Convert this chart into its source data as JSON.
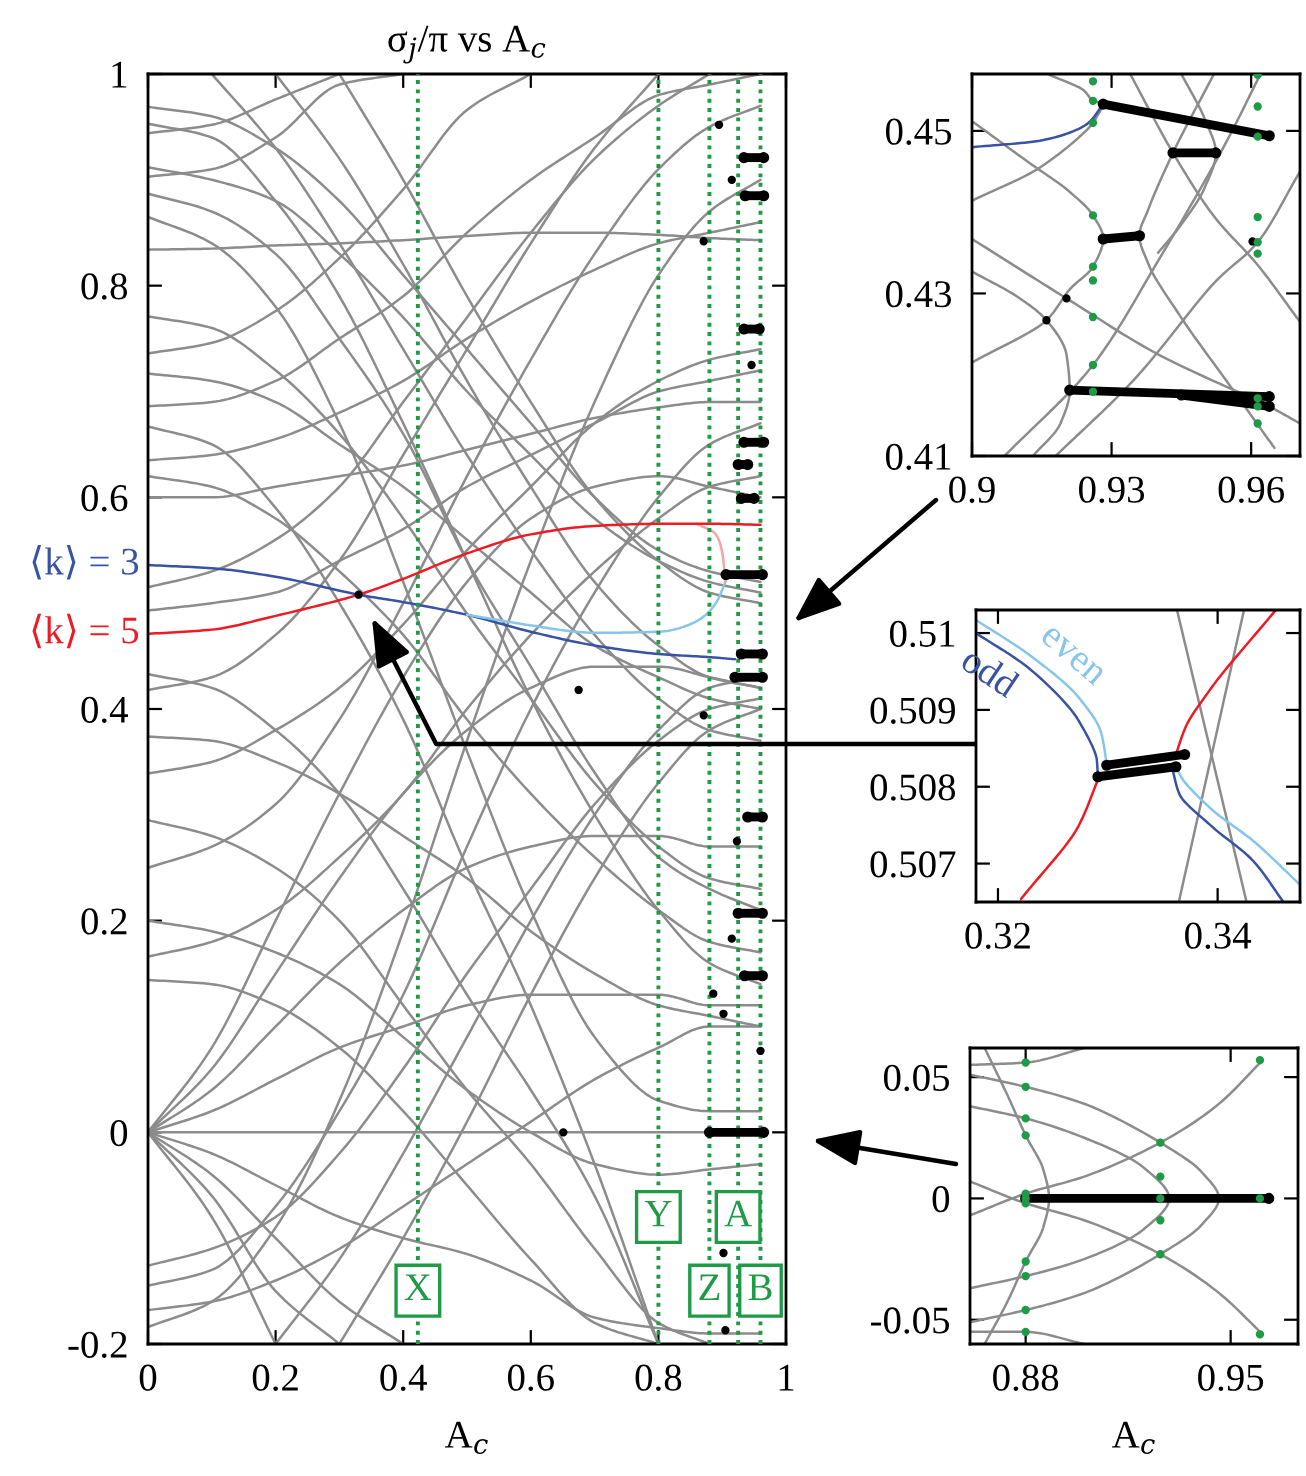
{
  "chart_data": [
    {
      "type": "line",
      "title": "σ$_{j}$/π vs A$_{c}$",
      "xlabel": "A$_{c}$",
      "xlim": [
        0,
        1
      ],
      "ylim": [
        -0.2,
        1
      ],
      "xticks": [
        0,
        0.2,
        0.4,
        0.6,
        0.8,
        1
      ],
      "yticks": [
        -0.2,
        0,
        0.2,
        0.4,
        0.6,
        0.8,
        1
      ],
      "x": [
        0,
        0.1,
        0.2,
        0.3,
        0.4,
        0.5,
        0.6,
        0.7,
        0.8,
        0.88,
        0.96
      ],
      "series": [
        {
          "color": "#8c8c8c",
          "values": [
            0.969,
            0.96,
            0.93,
            0.88,
            0.81,
            0.74,
            0.67,
            0.6,
            0.55,
            0.53,
            0.52
          ]
        },
        {
          "color": "#8c8c8c",
          "values": [
            0.953,
            0.94,
            0.88,
            0.79,
            0.67,
            0.54,
            0.41,
            0.3,
            0.21,
            0.16,
            0.14
          ]
        },
        {
          "color": "#8c8c8c",
          "values": [
            0.912,
            0.9,
            0.88,
            0.83,
            0.77,
            0.7,
            0.64,
            0.58,
            0.54,
            0.52,
            0.51
          ]
        },
        {
          "color": "#8c8c8c",
          "values": [
            0.887,
            0.87,
            0.83,
            0.75,
            0.66,
            0.54,
            0.44,
            0.34,
            0.26,
            0.23,
            0.21
          ]
        },
        {
          "color": "#8c8c8c",
          "values": [
            0.865,
            0.84,
            0.78,
            0.67,
            0.52,
            0.36,
            0.21,
            0.09,
            0.03,
            0.02,
            0.02
          ]
        },
        {
          "color": "#8c8c8c",
          "values": [
            0.771,
            0.76,
            0.72,
            0.66,
            0.58,
            0.49,
            0.41,
            0.33,
            0.27,
            0.24,
            0.23
          ]
        },
        {
          "color": "#8c8c8c",
          "values": [
            0.717,
            0.71,
            0.69,
            0.65,
            0.61,
            0.56,
            0.51,
            0.46,
            0.43,
            0.41,
            0.4
          ]
        },
        {
          "color": "#8c8c8c",
          "values": [
            0.667,
            0.65,
            0.59,
            0.5,
            0.39,
            0.25,
            0.12,
            -0.03,
            -0.2,
            null,
            null
          ]
        },
        {
          "color": "#8c8c8c",
          "values": [
            0.62,
            0.61,
            0.58,
            0.53,
            0.47,
            0.39,
            0.32,
            0.26,
            0.21,
            0.18,
            0.17
          ]
        },
        {
          "color": "#8c8c8c",
          "values": [
            0.433,
            0.42,
            0.38,
            0.32,
            0.23,
            0.13,
            0.04,
            -0.06,
            -0.2,
            null,
            null
          ]
        },
        {
          "color": "#8c8c8c",
          "values": [
            0.374,
            0.37,
            0.35,
            0.32,
            0.28,
            0.24,
            0.19,
            0.15,
            0.12,
            0.11,
            0.1
          ]
        },
        {
          "color": "#8c8c8c",
          "values": [
            0.295,
            0.28,
            0.25,
            0.2,
            0.12,
            0.04,
            -0.03,
            -0.11,
            -0.18,
            -0.2,
            null
          ]
        },
        {
          "color": "#8c8c8c",
          "values": [
            0.2,
            0.19,
            0.17,
            0.14,
            0.09,
            0.04,
            0,
            -0.03,
            -0.04,
            -0.035,
            -0.03
          ]
        },
        {
          "color": "#8c8c8c",
          "values": [
            0.144,
            0.14,
            0.12,
            0.08,
            0.02,
            -0.05,
            -0.12,
            -0.18,
            -0.2,
            null,
            null
          ]
        },
        {
          "color": "#8c8c8c",
          "values": [
            0.944,
            0.952,
            0.976,
            1,
            null,
            null,
            null,
            null,
            null,
            null,
            null
          ]
        },
        {
          "color": "#8c8c8c",
          "values": [
            0.903,
            0.91,
            0.94,
            0.99,
            1,
            null,
            null,
            null,
            null,
            null,
            null
          ]
        },
        {
          "color": "#8c8c8c",
          "values": [
            0.834,
            0.835,
            0.838,
            0.84,
            0.843,
            0.847,
            0.85,
            0.85,
            0.848,
            0.845,
            0.843
          ]
        },
        {
          "color": "#8c8c8c",
          "values": [
            0.736,
            0.746,
            0.776,
            0.826,
            0.891,
            0.966,
            1,
            null,
            null,
            null,
            null
          ]
        },
        {
          "color": "#8c8c8c",
          "values": [
            0.686,
            0.69,
            0.71,
            0.75,
            0.79,
            0.85,
            0.9,
            0.94,
            0.98,
            0.99,
            1
          ]
        },
        {
          "color": "#8c8c8c",
          "values": [
            0.635,
            0.64,
            0.655,
            0.68,
            0.71,
            0.75,
            0.785,
            0.815,
            0.84,
            0.85,
            0.86
          ]
        },
        {
          "color": "#8c8c8c",
          "values": [
            0.6,
            0.6,
            0.61,
            0.62,
            0.63,
            0.645,
            0.66,
            0.675,
            0.685,
            0.69,
            0.69
          ]
        },
        {
          "color": "#8c8c8c",
          "values": [
            0.515,
            0.53,
            0.56,
            0.61,
            0.69,
            0.77,
            0.85,
            0.92,
            0.97,
            1,
            null
          ]
        },
        {
          "color": "#8c8c8c",
          "values": [
            0.493,
            0.5,
            0.51,
            0.54,
            0.57,
            0.61,
            0.64,
            0.67,
            0.7,
            0.71,
            0.72
          ]
        },
        {
          "color": "#8c8c8c",
          "values": [
            0.418,
            0.43,
            0.47,
            0.54,
            0.64,
            0.74,
            0.84,
            0.93,
            1,
            null,
            null
          ]
        },
        {
          "color": "#8c8c8c",
          "values": [
            0.339,
            0.35,
            0.38,
            0.42,
            0.48,
            0.55,
            0.61,
            0.67,
            0.71,
            0.73,
            0.74
          ]
        },
        {
          "color": "#8c8c8c",
          "values": [
            0.25,
            0.27,
            0.31,
            0.39,
            0.5,
            0.62,
            0.73,
            0.83,
            0.91,
            0.95,
            0.97
          ]
        },
        {
          "color": "#8c8c8c",
          "values": [
            0.166,
            0.18,
            0.21,
            0.26,
            0.32,
            0.4,
            0.47,
            0.53,
            0.58,
            0.61,
            0.62
          ]
        },
        {
          "color": "#8c8c8c",
          "values": [
            -0.126,
            -0.11,
            -0.08,
            -0.02,
            0.06,
            0.15,
            0.23,
            0.31,
            0.37,
            0.4,
            0.41
          ]
        },
        {
          "color": "#8c8c8c",
          "values": [
            -0.145,
            -0.13,
            -0.07,
            0.02,
            0.13,
            0.27,
            0.4,
            0.51,
            0.6,
            0.65,
            0.67
          ]
        },
        {
          "color": "#8c8c8c",
          "values": [
            -0.168,
            -0.16,
            -0.14,
            -0.11,
            -0.07,
            -0.03,
            0.01,
            0.05,
            0.08,
            0.1,
            0.1
          ]
        },
        {
          "color": "#8c8c8c",
          "values": [
            -0.184,
            -0.16,
            -0.09,
            0.03,
            0.19,
            0.37,
            0.54,
            0.69,
            0.81,
            0.87,
            0.9
          ]
        },
        {
          "color": "#8c8c8c",
          "values": [
            null,
            null,
            -0.2,
            -0.12,
            -0.02,
            0.09,
            0.2,
            0.3,
            0.38,
            0.42,
            0.43
          ]
        },
        {
          "color": "#8c8c8c",
          "values": [
            null,
            null,
            null,
            -0.2,
            -0.1,
            0.01,
            0.13,
            0.24,
            0.33,
            0.38,
            0.4
          ]
        },
        {
          "color": "#8c8c8c",
          "values": [
            null,
            1,
            0.93,
            0.84,
            0.74,
            0.64,
            0.55,
            0.47,
            0.41,
            0.38,
            0.37
          ]
        },
        {
          "color": "#8c8c8c",
          "values": [
            null,
            null,
            1,
            0.92,
            0.82,
            0.71,
            0.61,
            0.52,
            0.46,
            0.43,
            0.42
          ]
        },
        {
          "color": "#8c8c8c",
          "values": [
            null,
            null,
            null,
            1,
            0.9,
            0.79,
            0.69,
            0.6,
            0.54,
            0.51,
            0.5
          ]
        },
        {
          "color": "#8c8c8c",
          "values": [
            0,
            0.02,
            0.05,
            0.08,
            0.1,
            0.12,
            0.13,
            0.13,
            0.13,
            0.12,
            0.12
          ]
        },
        {
          "color": "#8c8c8c",
          "values": [
            0,
            0.04,
            0.1,
            0.16,
            0.21,
            0.25,
            0.27,
            0.28,
            0.28,
            0.27,
            0.27
          ]
        },
        {
          "color": "#8c8c8c",
          "values": [
            0,
            0.06,
            0.15,
            0.24,
            0.32,
            0.38,
            0.42,
            0.44,
            0.44,
            0.43,
            0.42
          ]
        },
        {
          "color": "#8c8c8c",
          "values": [
            0,
            0.08,
            0.2,
            0.32,
            0.43,
            0.52,
            0.58,
            0.61,
            0.62,
            0.61,
            0.6
          ]
        },
        {
          "color": "#8c8c8c",
          "values": [
            0,
            -0.02,
            -0.05,
            -0.08,
            -0.1,
            -0.115,
            -0.14,
            -0.175,
            -0.185,
            -0.19,
            -0.19
          ]
        },
        {
          "color": "#8c8c8c",
          "values": [
            0,
            -0.04,
            -0.1,
            -0.16,
            -0.2,
            null,
            null,
            null,
            null,
            null,
            null
          ]
        },
        {
          "color": "#8c8c8c",
          "values": [
            0,
            -0.06,
            -0.15,
            -0.2,
            null,
            null,
            null,
            null,
            null,
            null,
            null
          ]
        },
        {
          "color": "#8c8c8c",
          "values": [
            0,
            -0.08,
            -0.2,
            null,
            null,
            null,
            null,
            null,
            null,
            null,
            null
          ]
        },
        {
          "color": "#8c8c8c",
          "values": [
            0,
            0,
            0,
            0,
            0,
            0,
            0,
            0,
            0,
            0,
            0
          ]
        },
        {
          "name": "⟨k⟩ = 3",
          "color": "#3953a4",
          "x": [
            0,
            0.1,
            0.2,
            0.33,
            0.4,
            0.5,
            0.6,
            0.7,
            0.8,
            0.88,
            0.92
          ],
          "values": [
            0.536,
            0.533,
            0.525,
            0.508,
            0.501,
            0.489,
            0.473,
            0.46,
            0.452,
            0.449,
            0.447
          ]
        },
        {
          "color": "#87c5ea",
          "x": [
            0.5,
            0.55,
            0.6,
            0.7,
            0.8,
            0.86,
            0.89,
            0.905
          ],
          "values": [
            0.489,
            0.484,
            0.479,
            0.472,
            0.473,
            0.483,
            0.5,
            0.52
          ]
        },
        {
          "color": "#f4a6a6",
          "x": [
            0.86,
            0.89,
            0.9,
            0.905
          ],
          "values": [
            0.575,
            0.565,
            0.548,
            0.52
          ]
        },
        {
          "name": "⟨k⟩ = 5",
          "color": "#ed1c24",
          "x": [
            0,
            0.1,
            0.2,
            0.33,
            0.4,
            0.5,
            0.6,
            0.7,
            0.8,
            0.88,
            0.96
          ],
          "values": [
            0.471,
            0.475,
            0.488,
            0.508,
            0.523,
            0.547,
            0.565,
            0.573,
            0.575,
            0.575,
            0.574
          ]
        },
        {
          "type": "line",
          "marker": "circle",
          "color": "#000000",
          "x": [
            0.934,
            0.965
          ],
          "values": [
            0.921,
            0.921
          ]
        },
        {
          "type": "line",
          "marker": "circle",
          "color": "#000000",
          "x": [
            0.936,
            0.965
          ],
          "values": [
            0.885,
            0.885
          ]
        },
        {
          "type": "line",
          "marker": "circle",
          "color": "#000000",
          "x": [
            0.934,
            0.958
          ],
          "values": [
            0.759,
            0.759
          ]
        },
        {
          "type": "line",
          "marker": "circle",
          "color": "#000000",
          "x": [
            0.934,
            0.965
          ],
          "values": [
            0.652,
            0.652
          ]
        },
        {
          "type": "line",
          "marker": "circle",
          "color": "#000000",
          "x": [
            0.925,
            0.94
          ],
          "values": [
            0.631,
            0.631
          ]
        },
        {
          "type": "line",
          "marker": "circle",
          "color": "#000000",
          "x": [
            0.93,
            0.95
          ],
          "values": [
            0.599,
            0.599
          ]
        },
        {
          "type": "line",
          "marker": "circle",
          "color": "#000000",
          "x": [
            0.906,
            0.963
          ],
          "values": [
            0.527,
            0.527
          ]
        },
        {
          "type": "line",
          "marker": "circle",
          "color": "#000000",
          "x": [
            0.93,
            0.963
          ],
          "values": [
            0.452,
            0.452
          ]
        },
        {
          "type": "line",
          "marker": "circle",
          "color": "#000000",
          "x": [
            0.92,
            0.963
          ],
          "values": [
            0.43,
            0.43
          ]
        },
        {
          "type": "line",
          "marker": "circle",
          "color": "#000000",
          "x": [
            0.94,
            0.963
          ],
          "values": [
            0.298,
            0.298
          ]
        },
        {
          "type": "line",
          "marker": "circle",
          "color": "#000000",
          "x": [
            0.925,
            0.963
          ],
          "values": [
            0.207,
            0.207
          ]
        },
        {
          "type": "line",
          "marker": "circle",
          "color": "#000000",
          "x": [
            0.935,
            0.963
          ],
          "values": [
            0.148,
            0.148
          ]
        },
        {
          "type": "line",
          "marker": "circle",
          "color": "#000000",
          "x": [
            0.88,
            0.965
          ],
          "values": [
            0,
            0
          ]
        },
        {
          "type": "scatter",
          "marker": "circle",
          "color": "#000000",
          "x": [
            0.33,
            0.895,
            0.915,
            0.871,
            0.946,
            0.675,
            0.871,
            0.923,
            0.651,
            0.886,
            0.902,
            0.96,
            0.902,
            0.915,
            0.905
          ],
          "values": [
            0.508,
            0.952,
            0.9,
            0.842,
            0.725,
            0.418,
            0.394,
            0.275,
            0,
            0.131,
            0.112,
            0.077,
            -0.114,
            0.183,
            -0.187
          ]
        }
      ],
      "ref_lines": [
        {
          "axis": "x",
          "value": 0.423,
          "label": "X",
          "color": "#1f9a46",
          "line_style": "dotted"
        },
        {
          "axis": "x",
          "value": 0.8,
          "label": "Y",
          "color": "#1f9a46",
          "line_style": "dotted"
        },
        {
          "axis": "x",
          "value": 0.88,
          "label": "Z",
          "color": "#1f9a46",
          "line_style": "dotted"
        },
        {
          "axis": "x",
          "value": 0.925,
          "label": "A",
          "color": "#1f9a46",
          "line_style": "dotted"
        },
        {
          "axis": "x",
          "value": 0.96,
          "label": "B",
          "color": "#1f9a46",
          "line_style": "dotted"
        }
      ]
    },
    {
      "type": "line",
      "xlim": [
        0.9,
        0.9705
      ],
      "ylim": [
        0.41,
        0.457
      ],
      "xticks": [
        0.9,
        0.93,
        0.96
      ],
      "yticks": [
        0.41,
        0.43,
        0.45
      ],
      "series": [
        {
          "color": "#8c8c8c",
          "x": [
            0.9167,
            0.924,
            0.926,
            0.9282,
            0.926,
            0.9146,
            0.9
          ],
          "values": [
            0.4569,
            0.455,
            0.4537,
            0.4533,
            0.451,
            0.4455,
            0.4414
          ]
        },
        {
          "color": "#8c8c8c",
          "x": [
            0.9,
            0.912,
            0.921,
            0.926,
            0.9282,
            0.926,
            0.921,
            0.916,
            0.9
          ],
          "values": [
            0.4512,
            0.4462,
            0.4425,
            0.4396,
            0.4367,
            0.4333,
            0.4305,
            0.4267,
            0.4215
          ]
        },
        {
          "color": "#8c8c8c",
          "x": [
            0.952,
            0.9432,
            0.938,
            0.936,
            0.938,
            0.945,
            0.955,
            0.965
          ],
          "values": [
            0.457,
            0.4473,
            0.4405,
            0.4371,
            0.4335,
            0.427,
            0.419,
            0.411
          ]
        },
        {
          "color": "#8c8c8c",
          "x": [
            0.945,
            0.95,
            0.9524,
            0.95,
            0.945,
            0.94
          ],
          "values": [
            0.457,
            0.4515,
            0.4473,
            0.443,
            0.4385,
            0.435
          ]
        },
        {
          "color": "#8c8c8c",
          "x": [
            0.907,
            0.926,
            0.94,
            0.955,
            0.962
          ],
          "values": [
            0.41,
            0.4212,
            0.434,
            0.449,
            0.457
          ]
        },
        {
          "color": "#8c8c8c",
          "x": [
            0.918,
            0.935,
            0.9524,
            0.9614,
            0.9705
          ],
          "values": [
            0.41,
            0.4195,
            0.4315,
            0.4363,
            0.445
          ]
        },
        {
          "color": "#8c8c8c",
          "x": [
            0.9,
            0.91,
            0.916,
            0.9203,
            0.921,
            0.919,
            0.9131
          ],
          "values": [
            0.4327,
            0.4295,
            0.4267,
            0.4225,
            0.4181,
            0.414,
            0.41
          ]
        },
        {
          "color": "#8c8c8c",
          "x": [
            0.9,
            0.9203,
            0.94,
            0.9639,
            0.9705
          ],
          "values": [
            0.4367,
            0.4294,
            0.4225,
            0.4161,
            0.414
          ]
        },
        {
          "color": "#8c8c8c",
          "x": [
            0.934,
            0.9432,
            0.952,
            0.9614,
            0.9705
          ],
          "values": [
            0.457,
            0.4473,
            0.4395,
            0.4335,
            0.4265
          ]
        },
        {
          "color": "#3953a4",
          "x": [
            0.9,
            0.9146,
            0.9246,
            0.9282
          ],
          "values": [
            0.448,
            0.4488,
            0.4508,
            0.4533
          ]
        },
        {
          "type": "line",
          "marker": "circle",
          "color": "#000000",
          "x": [
            0.9282,
            0.9639
          ],
          "values": [
            0.4533,
            0.4494
          ]
        },
        {
          "type": "line",
          "marker": "circle",
          "color": "#000000",
          "x": [
            0.9432,
            0.9524
          ],
          "values": [
            0.4473,
            0.4473
          ]
        },
        {
          "type": "line",
          "marker": "circle",
          "color": "#000000",
          "x": [
            0.9282,
            0.936
          ],
          "values": [
            0.4367,
            0.4371
          ]
        },
        {
          "type": "line",
          "marker": "circle",
          "color": "#000000",
          "x": [
            0.921,
            0.9639
          ],
          "values": [
            0.4181,
            0.4173
          ]
        },
        {
          "type": "line",
          "marker": "circle",
          "color": "#000000",
          "x": [
            0.945,
            0.9639
          ],
          "values": [
            0.4175,
            0.4161
          ]
        },
        {
          "type": "scatter",
          "marker": "circle",
          "color": "#000000",
          "x": [
            0.9203,
            0.916,
            0.9603
          ],
          "values": [
            0.4294,
            0.4267,
            0.4364
          ]
        },
        {
          "type": "scatter",
          "marker": "circle",
          "color": "#1f9a46",
          "x": [
            0.926,
            0.926,
            0.926,
            0.926,
            0.926,
            0.926,
            0.926,
            0.926,
            0.926,
            0.9614,
            0.9614,
            0.9614,
            0.9614,
            0.9614,
            0.9614,
            0.9614,
            0.9614,
            0.9614
          ],
          "values": [
            0.4561,
            0.4537,
            0.451,
            0.4396,
            0.4333,
            0.4316,
            0.4271,
            0.4212,
            0.4179,
            0.4569,
            0.453,
            0.4493,
            0.4394,
            0.4363,
            0.4349,
            0.4171,
            0.4161,
            0.414
          ]
        }
      ]
    },
    {
      "type": "line",
      "xlim": [
        0.318,
        0.3475
      ],
      "ylim": [
        0.5065,
        0.5103
      ],
      "xticks": [
        0.32,
        0.34
      ],
      "yticks": [
        0.507,
        0.508,
        0.509,
        0.51
      ],
      "series": [
        {
          "color": "#8c8c8c",
          "x": [
            0.3363,
            0.3426
          ],
          "values": [
            0.5103,
            0.50652
          ]
        },
        {
          "color": "#8c8c8c",
          "x": [
            0.3365,
            0.3424
          ],
          "values": [
            0.50652,
            0.5103
          ]
        },
        {
          "name": "odd",
          "color": "#3953a4",
          "x": [
            0.318,
            0.323,
            0.3273,
            0.329,
            0.3291,
            0.3325,
            0.3359,
            0.3365,
            0.3395,
            0.3432,
            0.3459
          ],
          "values": [
            0.51,
            0.50952,
            0.50887,
            0.50835,
            0.50813,
            null,
            0.50822,
            0.50791,
            0.50748,
            0.50704,
            0.50652
          ]
        },
        {
          "name": "even",
          "color": "#87c5ea",
          "x": [
            0.318,
            0.323,
            0.3273,
            0.3294,
            0.3299,
            0.333,
            0.3362,
            0.3368,
            0.3395,
            0.3432,
            0.3474
          ],
          "values": [
            0.51017,
            0.5097,
            0.50917,
            0.5087,
            0.5083,
            null,
            0.50826,
            0.5081,
            0.5077,
            0.5073,
            0.50674
          ]
        },
        {
          "color": "#ed1c24",
          "x": [
            0.3221,
            0.3273,
            0.3291,
            0.333,
            0.3362,
            0.3371,
            0.3395,
            0.3453
          ],
          "values": [
            0.50654,
            0.50748,
            0.50809,
            null,
            0.50842,
            0.50878,
            0.5093,
            0.5103
          ]
        },
        {
          "type": "line",
          "marker": "circle",
          "color": "#000000",
          "x": [
            0.3299,
            0.337
          ],
          "values": [
            0.50828,
            0.50842
          ]
        },
        {
          "type": "line",
          "marker": "circle",
          "color": "#000000",
          "x": [
            0.3291,
            0.3362
          ],
          "values": [
            0.50813,
            0.50826
          ]
        }
      ]
    },
    {
      "type": "line",
      "xlabel": "A$_{c}$",
      "xlim": [
        0.861,
        0.973
      ],
      "ylim": [
        -0.06,
        0.062
      ],
      "xticks": [
        0.88,
        0.95
      ],
      "yticks": [
        -0.05,
        0,
        0.05
      ],
      "series": [
        {
          "color": "#8c8c8c",
          "x": [
            0.861,
            0.88,
            0.9,
            0.926,
            0.94,
            0.946,
            0.94,
            0.926,
            0.9,
            0.88,
            0.861
          ],
          "values": [
            0.051,
            0.046,
            0.039,
            0.023,
            0.011,
            0,
            -0.011,
            -0.023,
            -0.039,
            -0.046,
            -0.051
          ]
        },
        {
          "color": "#8c8c8c",
          "x": [
            0.861,
            0.88,
            0.9,
            0.92,
            0.929,
            0.92,
            0.9,
            0.88,
            0.861
          ],
          "values": [
            0.038,
            0.033,
            0.025,
            0.013,
            0,
            -0.013,
            -0.025,
            -0.032,
            -0.037
          ]
        },
        {
          "color": "#8c8c8c",
          "x": [
            0.866,
            0.874,
            0.88,
            0.886,
            0.888,
            0.886,
            0.88,
            0.874,
            0.866
          ],
          "values": [
            0.062,
            0.042,
            0.026,
            0.012,
            0,
            -0.012,
            -0.026,
            -0.042,
            -0.06
          ]
        },
        {
          "color": "#8c8c8c",
          "x": [
            0.861,
            0.88,
            0.9,
            0.926,
            0.945,
            0.961
          ],
          "values": [
            0.007,
            -0.002,
            -0.009,
            -0.023,
            -0.038,
            -0.056
          ]
        },
        {
          "color": "#8c8c8c",
          "x": [
            0.861,
            0.88,
            0.9,
            0.926,
            0.945,
            0.961
          ],
          "values": [
            -0.007,
            0.002,
            0.009,
            0.023,
            0.038,
            0.057
          ]
        },
        {
          "color": "#8c8c8c",
          "x": [
            0.861,
            0.88,
            0.9
          ],
          "values": [
            0.055,
            0.056,
            0.062
          ]
        },
        {
          "color": "#8c8c8c",
          "x": [
            0.861,
            0.88,
            0.9
          ],
          "values": [
            -0.055,
            -0.055,
            -0.06
          ]
        },
        {
          "type": "line",
          "marker": "circle",
          "color": "#000000",
          "x": [
            0.88,
            0.963
          ],
          "values": [
            0,
            0
          ]
        },
        {
          "type": "scatter",
          "marker": "circle",
          "color": "#1f9a46",
          "x": [
            0.88,
            0.88,
            0.88,
            0.88,
            0.88,
            0.88,
            0.88,
            0.88,
            0.88,
            0.88,
            0.88,
            0.926,
            0.926,
            0.926,
            0.926,
            0.926,
            0.96,
            0.96,
            0.96
          ],
          "values": [
            0.056,
            0.046,
            0.033,
            0.026,
            0.002,
            0,
            -0.002,
            -0.026,
            -0.032,
            -0.046,
            -0.055,
            0.023,
            0.009,
            0,
            -0.009,
            -0.023,
            0.057,
            0,
            -0.056
          ]
        }
      ]
    }
  ]
}
